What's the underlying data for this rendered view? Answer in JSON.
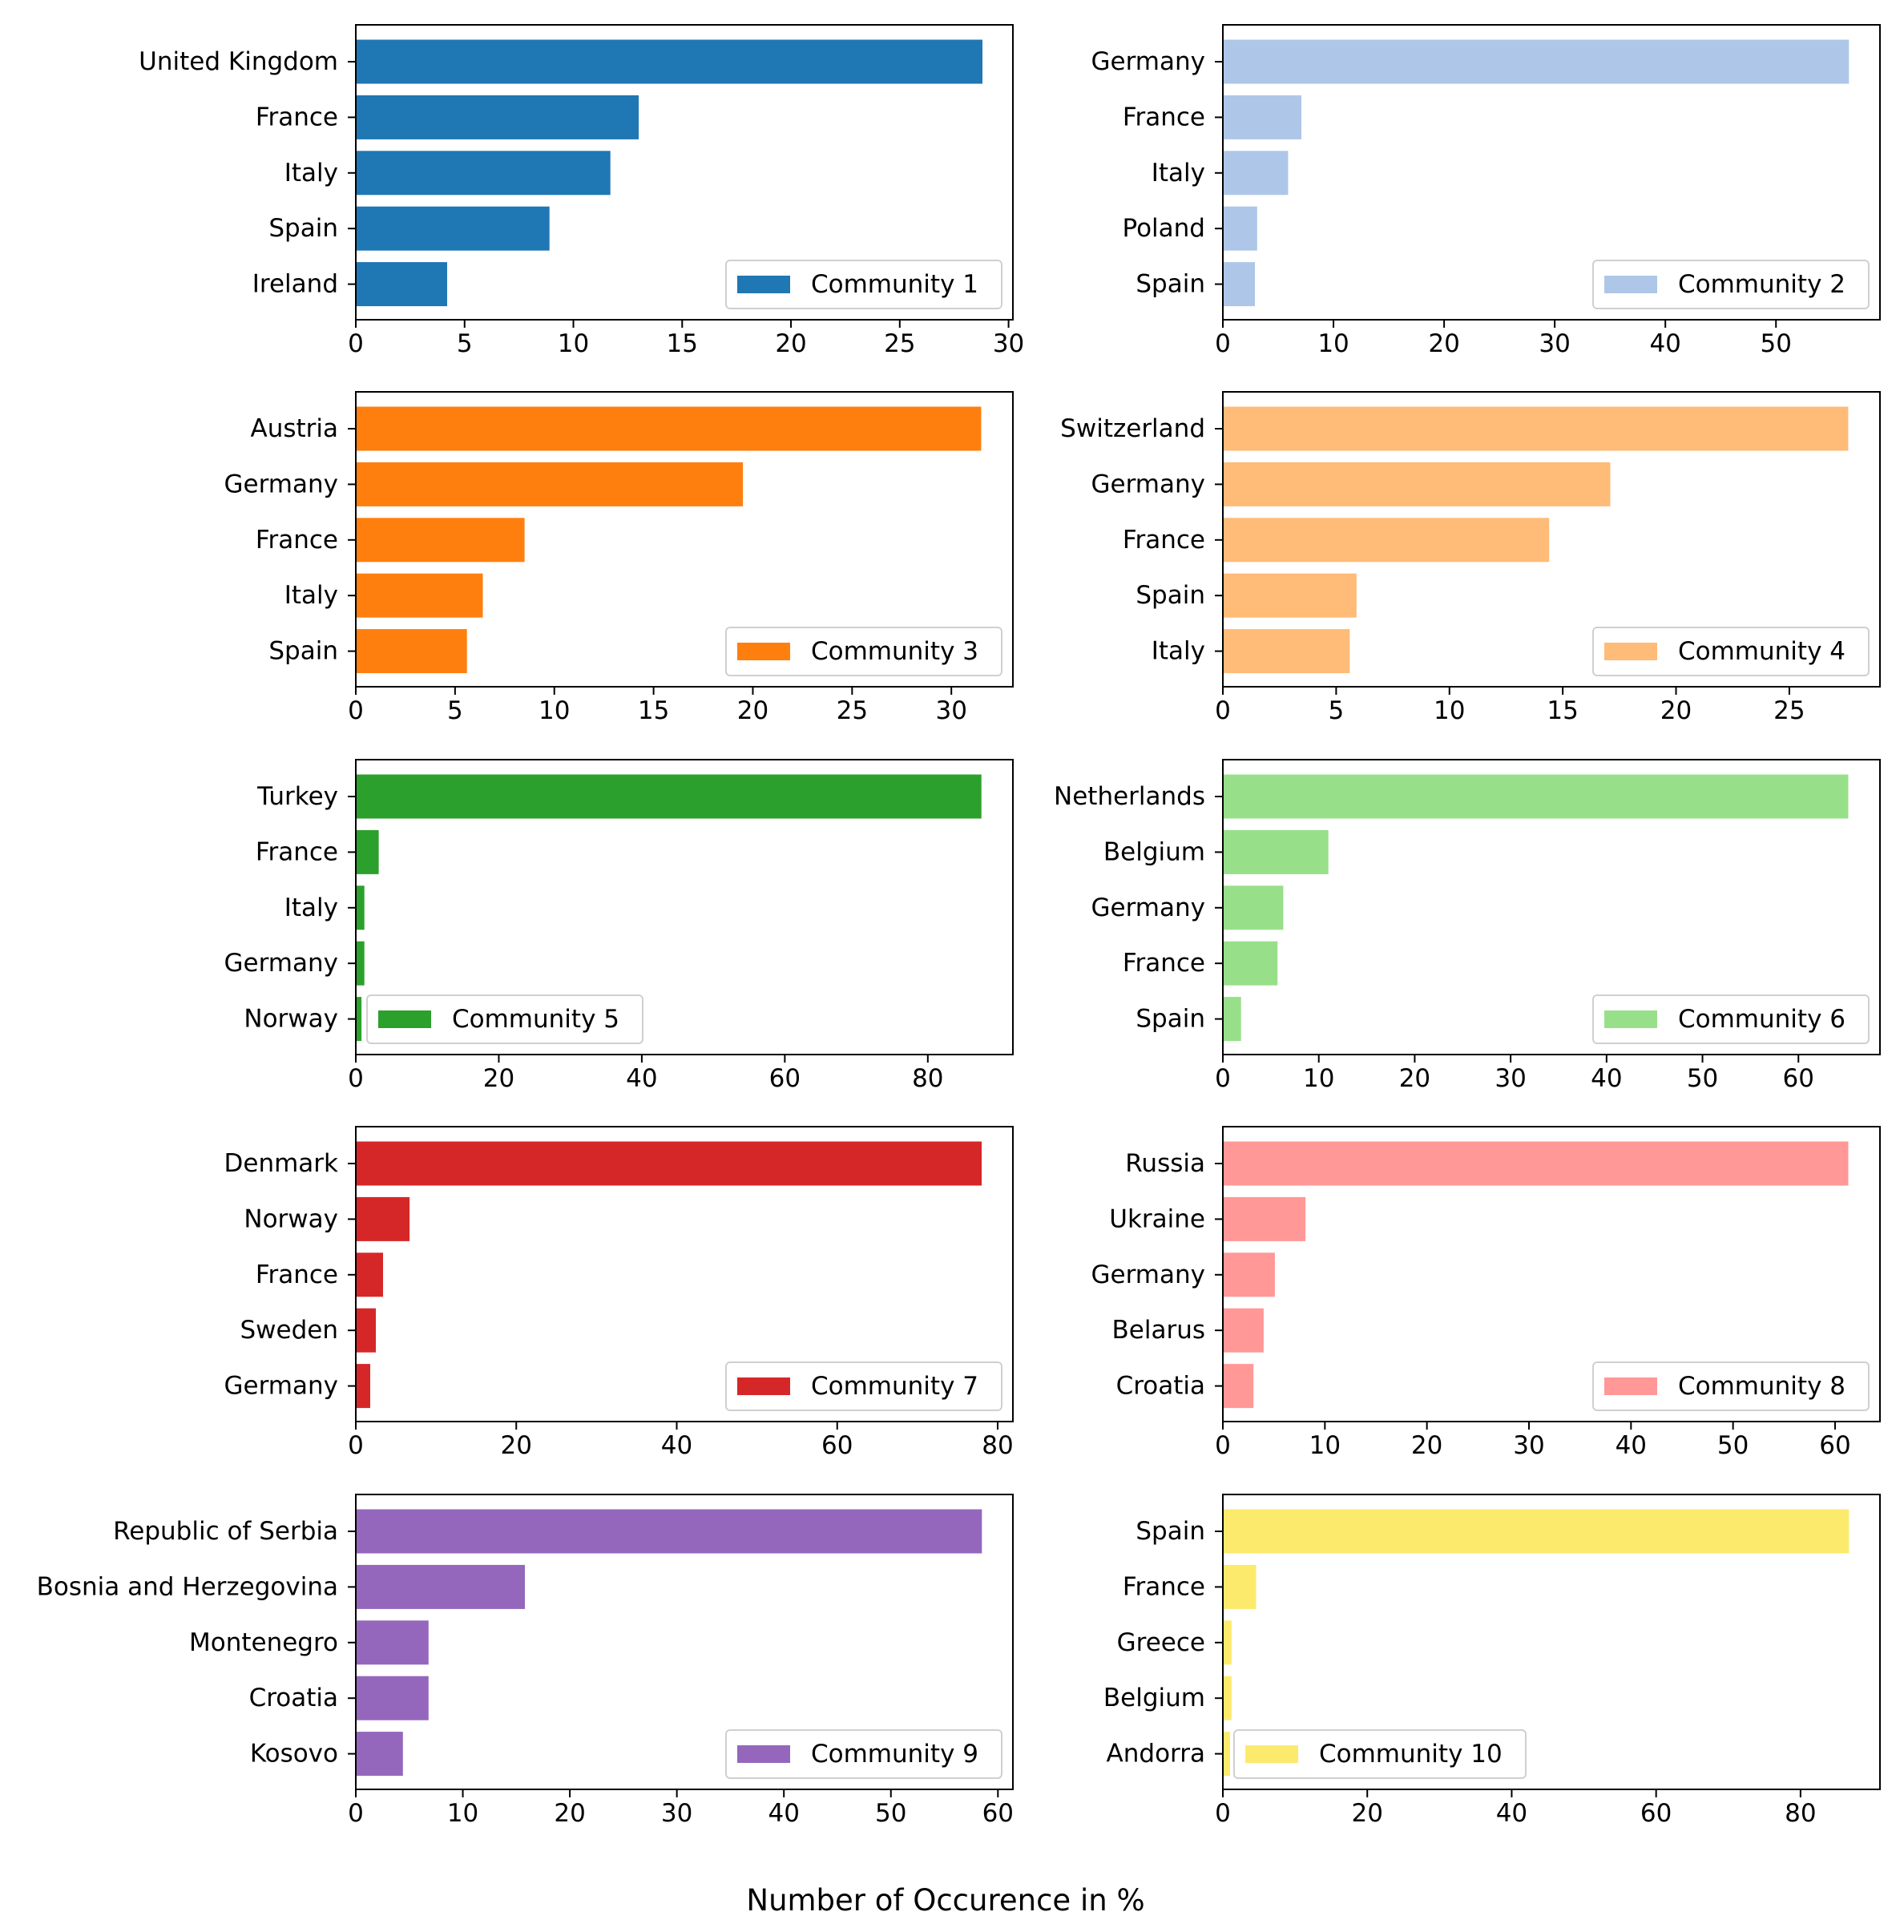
{
  "figure": {
    "xlabel": "Number of Occurence in %",
    "axes_color": "#000000",
    "background": "#ffffff"
  },
  "chart_data": [
    {
      "type": "bar",
      "orientation": "horizontal",
      "legend": "Community 1",
      "legend_position": "lower right",
      "color": "#1f77b4",
      "categories": [
        "United Kingdom",
        "France",
        "Italy",
        "Spain",
        "Ireland"
      ],
      "values": [
        28.8,
        13.0,
        11.7,
        8.9,
        4.2
      ],
      "xlim": [
        0,
        30.2
      ],
      "xticks": [
        0,
        5,
        10,
        15,
        20,
        25,
        30
      ]
    },
    {
      "type": "bar",
      "orientation": "horizontal",
      "legend": "Community 2",
      "legend_position": "lower right",
      "color": "#aec7e8",
      "categories": [
        "Germany",
        "France",
        "Italy",
        "Poland",
        "Spain"
      ],
      "values": [
        56.6,
        7.1,
        5.9,
        3.1,
        2.9
      ],
      "xlim": [
        0,
        59.4
      ],
      "xticks": [
        0,
        10,
        20,
        30,
        40,
        50
      ]
    },
    {
      "type": "bar",
      "orientation": "horizontal",
      "legend": "Community 3",
      "legend_position": "lower right",
      "color": "#ff7f0e",
      "categories": [
        "Austria",
        "Germany",
        "France",
        "Italy",
        "Spain"
      ],
      "values": [
        31.5,
        19.5,
        8.5,
        6.4,
        5.6
      ],
      "xlim": [
        0,
        33.1
      ],
      "xticks": [
        0,
        5,
        10,
        15,
        20,
        25,
        30
      ]
    },
    {
      "type": "bar",
      "orientation": "horizontal",
      "legend": "Community 4",
      "legend_position": "lower right",
      "color": "#ffbb78",
      "categories": [
        "Switzerland",
        "Germany",
        "France",
        "Spain",
        "Italy"
      ],
      "values": [
        27.6,
        17.1,
        14.4,
        5.9,
        5.6
      ],
      "xlim": [
        0,
        29.0
      ],
      "xticks": [
        0,
        5,
        10,
        15,
        20,
        25
      ]
    },
    {
      "type": "bar",
      "orientation": "horizontal",
      "legend": "Community 5",
      "legend_position": "lower left",
      "color": "#2ca02c",
      "categories": [
        "Turkey",
        "France",
        "Italy",
        "Germany",
        "Norway"
      ],
      "values": [
        87.5,
        3.2,
        1.2,
        1.2,
        0.8
      ],
      "xlim": [
        0,
        91.9
      ],
      "xticks": [
        0,
        20,
        40,
        60,
        80
      ]
    },
    {
      "type": "bar",
      "orientation": "horizontal",
      "legend": "Community 6",
      "legend_position": "lower right",
      "color": "#98df8a",
      "categories": [
        "Netherlands",
        "Belgium",
        "Germany",
        "France",
        "Spain"
      ],
      "values": [
        65.2,
        11.0,
        6.3,
        5.7,
        1.9
      ],
      "xlim": [
        0,
        68.5
      ],
      "xticks": [
        0,
        10,
        20,
        30,
        40,
        50,
        60
      ]
    },
    {
      "type": "bar",
      "orientation": "horizontal",
      "legend": "Community 7",
      "legend_position": "lower right",
      "color": "#d62728",
      "categories": [
        "Denmark",
        "Norway",
        "France",
        "Sweden",
        "Germany"
      ],
      "values": [
        78.0,
        6.7,
        3.4,
        2.5,
        1.8
      ],
      "xlim": [
        0,
        81.9
      ],
      "xticks": [
        0,
        20,
        40,
        60,
        80
      ]
    },
    {
      "type": "bar",
      "orientation": "horizontal",
      "legend": "Community 8",
      "legend_position": "lower right",
      "color": "#ff9896",
      "categories": [
        "Russia",
        "Ukraine",
        "Germany",
        "Belarus",
        "Croatia"
      ],
      "values": [
        61.3,
        8.1,
        5.1,
        4.0,
        3.0
      ],
      "xlim": [
        0,
        64.4
      ],
      "xticks": [
        0,
        10,
        20,
        30,
        40,
        50,
        60
      ]
    },
    {
      "type": "bar",
      "orientation": "horizontal",
      "legend": "Community 9",
      "legend_position": "lower right",
      "color": "#9467bd",
      "categories": [
        "Republic of Serbia",
        "Bosnia and Herzegovina",
        "Montenegro",
        "Croatia",
        "Kosovo"
      ],
      "values": [
        58.5,
        15.8,
        6.8,
        6.8,
        4.4
      ],
      "xlim": [
        0,
        61.4
      ],
      "xticks": [
        0,
        10,
        20,
        30,
        40,
        50,
        60
      ]
    },
    {
      "type": "bar",
      "orientation": "horizontal",
      "legend": "Community 10",
      "legend_position": "lower left",
      "color": "#fcea6d",
      "categories": [
        "Spain",
        "France",
        "Greece",
        "Belgium",
        "Andorra"
      ],
      "values": [
        86.7,
        4.6,
        1.2,
        1.2,
        1.0
      ],
      "xlim": [
        0,
        91.0
      ],
      "xticks": [
        0,
        20,
        40,
        60,
        80
      ]
    }
  ]
}
